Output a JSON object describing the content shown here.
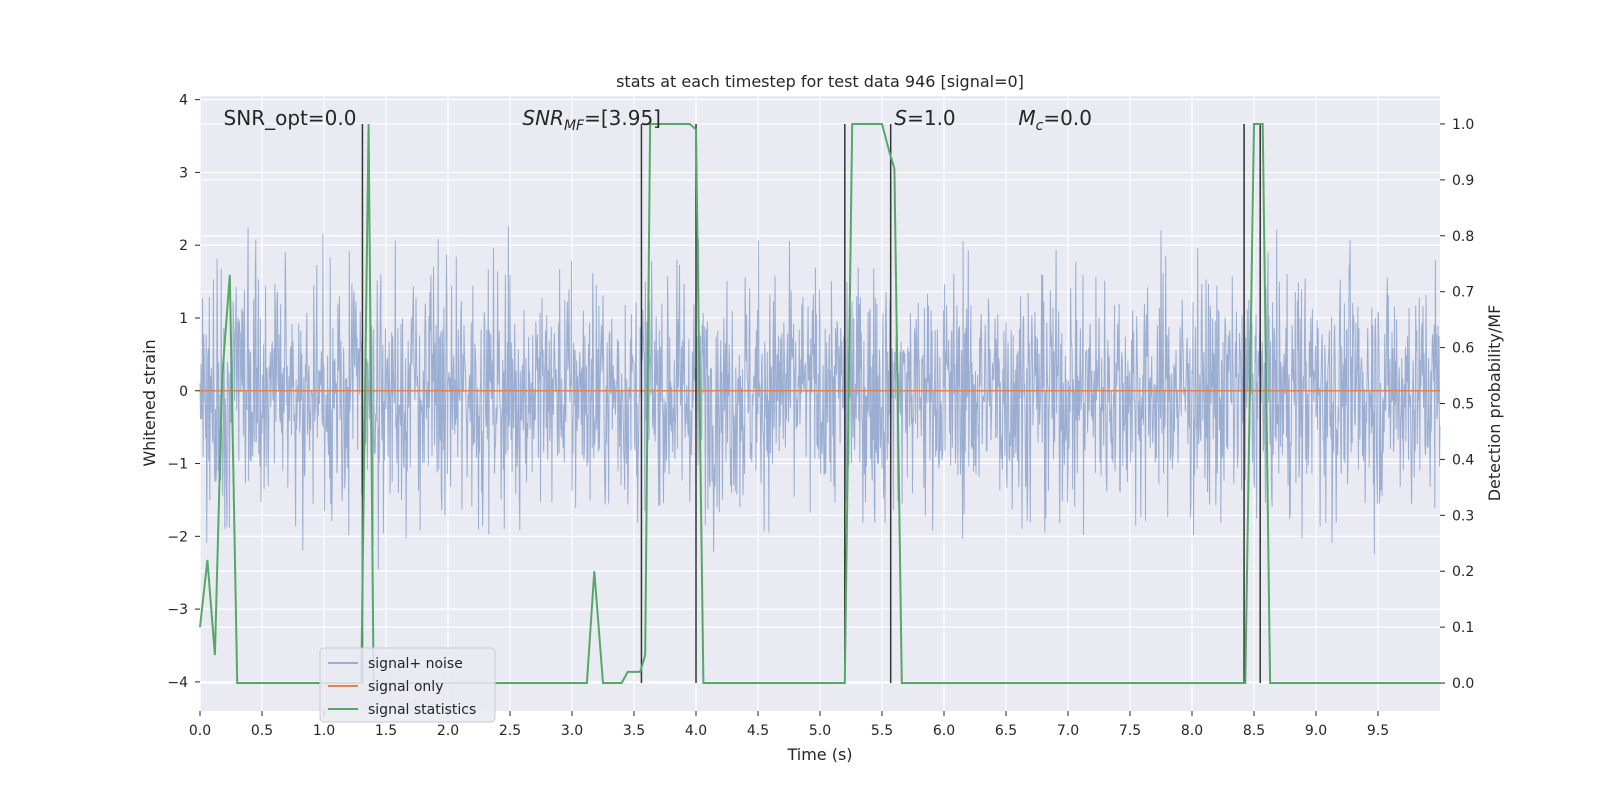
{
  "chart_data": {
    "type": "line",
    "title": "stats at each timestep for test data 946 [signal=0]",
    "xlabel": "Time (s)",
    "ylabel": "Whitened strain",
    "y2label": "Detection probability/MF",
    "xlim": [
      0.0,
      10.0
    ],
    "ylim": [
      -4.4,
      4.05
    ],
    "y2lim": [
      -0.05,
      1.05
    ],
    "xticks": [
      "0.0",
      "0.5",
      "1.0",
      "1.5",
      "2.0",
      "2.5",
      "3.0",
      "3.5",
      "4.0",
      "4.5",
      "5.0",
      "5.5",
      "6.0",
      "6.5",
      "7.0",
      "7.5",
      "8.0",
      "8.5",
      "9.0",
      "9.5"
    ],
    "yticks": [
      "4",
      "3",
      "2",
      "1",
      "0",
      "−1",
      "−2",
      "−3",
      "−4"
    ],
    "y2ticks": [
      "1.0",
      "0.9",
      "0.8",
      "0.7",
      "0.6",
      "0.5",
      "0.4",
      "0.3",
      "0.2",
      "0.1",
      "0.0"
    ],
    "grid": true,
    "legend_position": "lower-left",
    "annotations": [
      {
        "text": "SNR_opt=0.0",
        "x": 0.19
      },
      {
        "text": "SNR",
        "sub": "MF",
        "suffix": "=[3.95]",
        "x": 2.6
      },
      {
        "text": "S",
        "suffix": "=1.0",
        "x": 5.6
      },
      {
        "text": "M",
        "sub": "c",
        "suffix": "=0.0",
        "x": 6.6
      }
    ],
    "series": [
      {
        "name": "signal+ noise",
        "color": "#4c72b0",
        "kind": "noise",
        "x_range": [
          0.0,
          10.0
        ],
        "y_range": [
          -3.5,
          3.65
        ]
      },
      {
        "name": "signal only",
        "color": "#dd8452",
        "x": [
          0.0,
          10.0
        ],
        "y": [
          0.0,
          0.0
        ]
      },
      {
        "name": "signal statistics",
        "color": "#55a868",
        "axis": "right",
        "x": [
          0.0,
          0.06,
          0.12,
          0.18,
          0.24,
          0.3,
          1.3,
          1.36,
          1.4,
          1.44,
          3.05,
          3.12,
          3.18,
          3.25,
          3.4,
          3.45,
          3.5,
          3.55,
          3.59,
          3.63,
          3.7,
          3.75,
          3.8,
          3.85,
          3.9,
          3.95,
          4.0,
          4.06,
          5.2,
          5.26,
          5.3,
          5.5,
          5.56,
          5.6,
          5.66,
          8.43,
          8.5,
          8.57,
          8.63,
          10.0
        ],
        "y": [
          0.1,
          0.22,
          0.05,
          0.55,
          0.73,
          0.0,
          0.0,
          1.0,
          0.0,
          0.0,
          0.0,
          0.0,
          0.2,
          0.0,
          0.0,
          0.02,
          0.02,
          0.02,
          0.05,
          1.0,
          1.0,
          1.0,
          1.0,
          1.0,
          1.0,
          1.0,
          0.99,
          0.0,
          0.0,
          1.0,
          1.0,
          1.0,
          0.95,
          0.92,
          0.0,
          0.0,
          1.0,
          1.0,
          0.0,
          0.0
        ]
      }
    ],
    "vlines": [
      1.31,
      3.56,
      4.0,
      5.2,
      5.57,
      8.42,
      8.55
    ],
    "vline_color": "#333333"
  }
}
